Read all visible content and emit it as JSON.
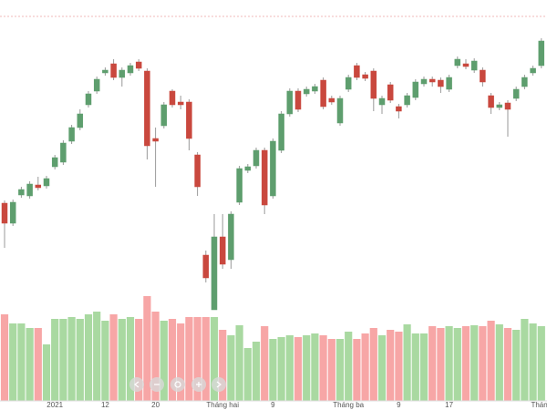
{
  "chart_data": {
    "type": "candlestick",
    "categories": [
      null,
      null,
      null,
      null,
      null,
      null,
      "2021",
      null,
      null,
      null,
      null,
      null,
      "12",
      null,
      null,
      null,
      null,
      null,
      "20",
      null,
      null,
      null,
      null,
      null,
      null,
      null,
      "Tháng hai",
      null,
      null,
      null,
      null,
      null,
      "9",
      null,
      null,
      null,
      null,
      null,
      null,
      null,
      null,
      "Tháng ba",
      null,
      null,
      null,
      null,
      null,
      "9",
      null,
      null,
      null,
      null,
      null,
      "17",
      null,
      null,
      null,
      null,
      null,
      null,
      null,
      null,
      null,
      null,
      "Tháng"
    ],
    "open": [
      227,
      205,
      236,
      235,
      247,
      246,
      267,
      272,
      295,
      310,
      335,
      350,
      370,
      380,
      365,
      370,
      382,
      372,
      298,
      312,
      350,
      338,
      338,
      280,
      170,
      110,
      190,
      165,
      228,
      263,
      268,
      285,
      235,
      285,
      325,
      350,
      347,
      350,
      362,
      342,
      315,
      352,
      378,
      368,
      372,
      335,
      357,
      333,
      335,
      343,
      358,
      363,
      362,
      352,
      378,
      380,
      373,
      373,
      345,
      332,
      337,
      342,
      355,
      370,
      378
    ],
    "high": [
      230,
      231,
      245,
      251,
      256,
      257,
      280,
      296,
      313,
      330,
      350,
      366,
      376,
      385,
      376,
      381,
      385,
      375,
      310,
      338,
      352,
      345,
      341,
      283,
      175,
      215,
      215,
      218,
      268,
      270,
      288,
      288,
      298,
      328,
      353,
      353,
      355,
      358,
      365,
      345,
      345,
      368,
      381,
      371,
      375,
      345,
      360,
      336,
      348,
      363,
      366,
      366,
      365,
      368,
      388,
      385,
      386,
      376,
      348,
      338,
      340,
      355,
      368,
      378,
      408
    ],
    "low": [
      178,
      202,
      233,
      232,
      241,
      243,
      264,
      269,
      292,
      307,
      332,
      347,
      367,
      362,
      355,
      367,
      372,
      275,
      245,
      309,
      332,
      330,
      285,
      235,
      140,
      110,
      155,
      155,
      225,
      260,
      265,
      215,
      232,
      282,
      322,
      327,
      344,
      347,
      330,
      335,
      312,
      349,
      362,
      361,
      328,
      325,
      337,
      320,
      332,
      340,
      355,
      355,
      348,
      349,
      375,
      374,
      370,
      355,
      325,
      329,
      300,
      339,
      352,
      367,
      375
    ],
    "close": [
      205,
      228,
      242,
      248,
      244,
      254,
      277,
      293,
      310,
      325,
      347,
      363,
      373,
      365,
      373,
      378,
      375,
      290,
      295,
      335,
      335,
      335,
      298,
      245,
      145,
      190,
      160,
      215,
      265,
      267,
      285,
      225,
      295,
      325,
      350,
      330,
      352,
      355,
      333,
      338,
      342,
      365,
      365,
      364,
      342,
      342,
      340,
      328,
      345,
      360,
      363,
      360,
      355,
      365,
      385,
      377,
      383,
      360,
      332,
      335,
      330,
      352,
      365,
      375,
      405
    ],
    "volume": [
      95,
      85,
      85,
      80,
      80,
      62,
      90,
      90,
      92,
      90,
      95,
      98,
      88,
      95,
      90,
      92,
      90,
      115,
      98,
      88,
      90,
      85,
      92,
      92,
      92,
      92,
      78,
      72,
      83,
      58,
      65,
      82,
      68,
      70,
      72,
      70,
      72,
      74,
      72,
      68,
      68,
      76,
      68,
      74,
      80,
      72,
      78,
      76,
      84,
      74,
      74,
      82,
      80,
      82,
      80,
      82,
      83,
      82,
      88,
      84,
      80,
      78,
      90,
      85,
      82
    ],
    "ylim": [
      110,
      450
    ],
    "volume_lim": [
      0,
      120
    ],
    "up_color": "#5e9e6e",
    "down_color": "#c9483e",
    "volume_up_color": "#a9d9a1",
    "volume_down_color": "#f7a6a6"
  }
}
